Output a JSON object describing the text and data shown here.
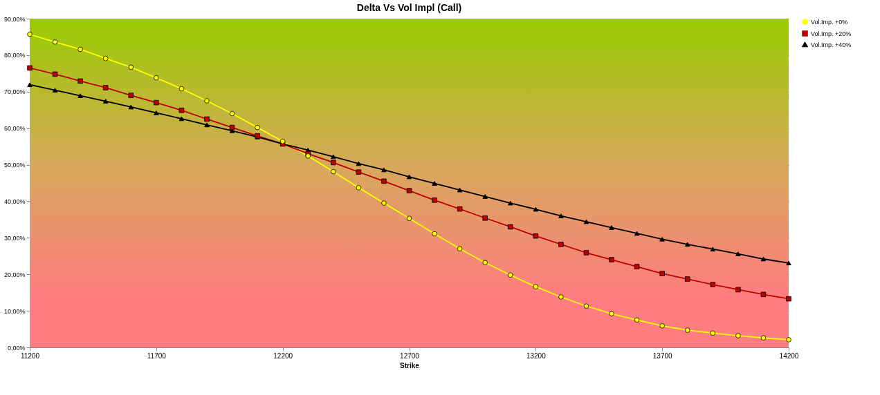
{
  "chart_data": {
    "type": "line",
    "title": "Delta Vs Vol Impl (Call)",
    "xlabel": "Strike",
    "x": [
      11200,
      11300,
      11400,
      11500,
      11600,
      11700,
      11800,
      11900,
      12000,
      12100,
      12200,
      12300,
      12400,
      12500,
      12600,
      12700,
      12800,
      12900,
      13000,
      13100,
      13200,
      13300,
      13400,
      13500,
      13600,
      13700,
      13800,
      13900,
      14000,
      14100,
      14200
    ],
    "series": [
      {
        "name": "Vol.Imp. +0%",
        "color": "#ffff00",
        "marker": "circle",
        "values": [
          85.7,
          83.6,
          81.6,
          79.1,
          76.7,
          73.8,
          70.8,
          67.5,
          64.0,
          60.2,
          56.4,
          52.4,
          48.1,
          43.7,
          39.5,
          35.3,
          31.1,
          27.0,
          23.2,
          19.8,
          16.6,
          13.8,
          11.3,
          9.2,
          7.5,
          5.9,
          4.7,
          3.9,
          3.2,
          2.6,
          2.1
        ]
      },
      {
        "name": "Vol.Imp. +20%",
        "color": "#c00000",
        "marker": "square",
        "values": [
          76.5,
          74.8,
          72.9,
          71.1,
          69.0,
          67.0,
          64.9,
          62.5,
          60.2,
          57.9,
          55.7,
          53.0,
          50.6,
          48.0,
          45.5,
          42.9,
          40.3,
          37.9,
          35.4,
          33.0,
          30.5,
          28.2,
          25.9,
          24.0,
          22.1,
          20.2,
          18.7,
          17.2,
          15.8,
          14.5,
          13.3
        ]
      },
      {
        "name": "Vol.Imp. +40%",
        "color": "#000000",
        "marker": "triangle",
        "values": [
          71.9,
          70.4,
          68.9,
          67.4,
          65.8,
          64.2,
          62.6,
          60.9,
          59.3,
          57.6,
          55.7,
          54.0,
          52.2,
          50.3,
          48.6,
          46.7,
          44.9,
          43.1,
          41.3,
          39.5,
          37.8,
          36.0,
          34.4,
          32.8,
          31.2,
          29.6,
          28.2,
          26.9,
          25.6,
          24.2,
          23.1
        ]
      }
    ],
    "xlim": [
      11200,
      14200
    ],
    "xticks": [
      11200,
      11700,
      12200,
      12700,
      13200,
      13700,
      14200
    ],
    "ylim": [
      0,
      90
    ],
    "yticks": [
      {
        "value": 0,
        "label": "0,00%"
      },
      {
        "value": 10,
        "label": "10,00%"
      },
      {
        "value": 20,
        "label": "20,00%"
      },
      {
        "value": 30,
        "label": "30,00%"
      },
      {
        "value": 40,
        "label": "40,00%"
      },
      {
        "value": 50,
        "label": "50,00%"
      },
      {
        "value": 60,
        "label": "60,00%"
      },
      {
        "value": 70,
        "label": "70,00%"
      },
      {
        "value": 80,
        "label": "80,00%"
      },
      {
        "value": 90,
        "label": "90,00%"
      }
    ],
    "grid": "y",
    "legend": "right",
    "line_style": "solid"
  }
}
